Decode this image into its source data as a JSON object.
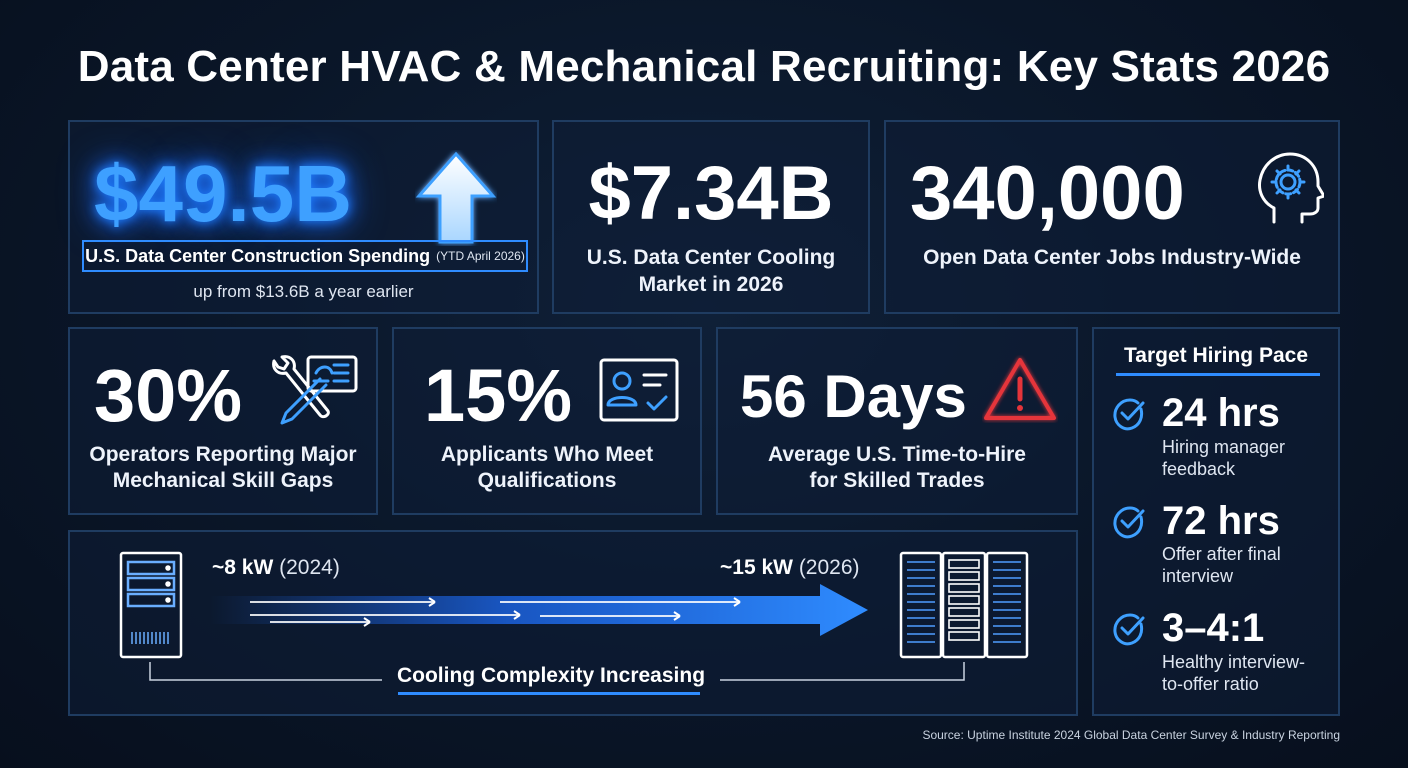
{
  "title": "Data Center HVAC & Mechanical Recruiting: Key Stats 2026",
  "stats": {
    "construction": {
      "value": "$49.5B",
      "label": "U.S. Data Center Construction Spending",
      "label_note": "(YTD April 2026)",
      "sub": "up from $13.6B a year earlier"
    },
    "cooling": {
      "value": "$7.34B",
      "label_line1": "U.S. Data Center Cooling",
      "label_line2": "Market in 2026"
    },
    "jobs": {
      "value": "340,000",
      "label": "Open Data Center Jobs Industry-Wide"
    },
    "skill_gaps": {
      "value": "30%",
      "label_line1": "Operators Reporting Major",
      "label_line2": "Mechanical Skill Gaps"
    },
    "qualified": {
      "value": "15%",
      "label_line1": "Applicants Who Meet",
      "label_line2": "Qualifications"
    },
    "time_to_hire": {
      "value": "56 Days",
      "label_line1": "Average U.S. Time-to-Hire",
      "label_line2": "for Skilled Trades"
    }
  },
  "cooling_band": {
    "start_bold": "~8 kW",
    "start_year": "(2024)",
    "end_bold": "~15 kW",
    "end_year": "(2026)",
    "caption": "Cooling Complexity Increasing"
  },
  "hiring_pace": {
    "title": "Target Hiring Pace",
    "items": [
      {
        "value": "24 hrs",
        "desc_line1": "Hiring manager",
        "desc_line2": "feedback"
      },
      {
        "value": "72 hrs",
        "desc_line1": "Offer after final",
        "desc_line2": "interview"
      },
      {
        "value": "3–4:1",
        "desc_line1": "Healthy interview-",
        "desc_line2": "to-offer ratio"
      }
    ]
  },
  "source": "Source: Uptime Institute 2024 Global Data Center Survey & Industry Reporting",
  "colors": {
    "accent": "#2f8cff",
    "alert": "#e5343a",
    "background": "#0a1628",
    "border": "#1f3c61"
  },
  "icons": [
    "arrow-up-icon",
    "gear-head-icon",
    "wrench-screwdriver-icon",
    "id-card-check-icon",
    "warning-triangle-icon",
    "server-rack-icon",
    "server-cluster-icon",
    "check-circle-icon"
  ]
}
